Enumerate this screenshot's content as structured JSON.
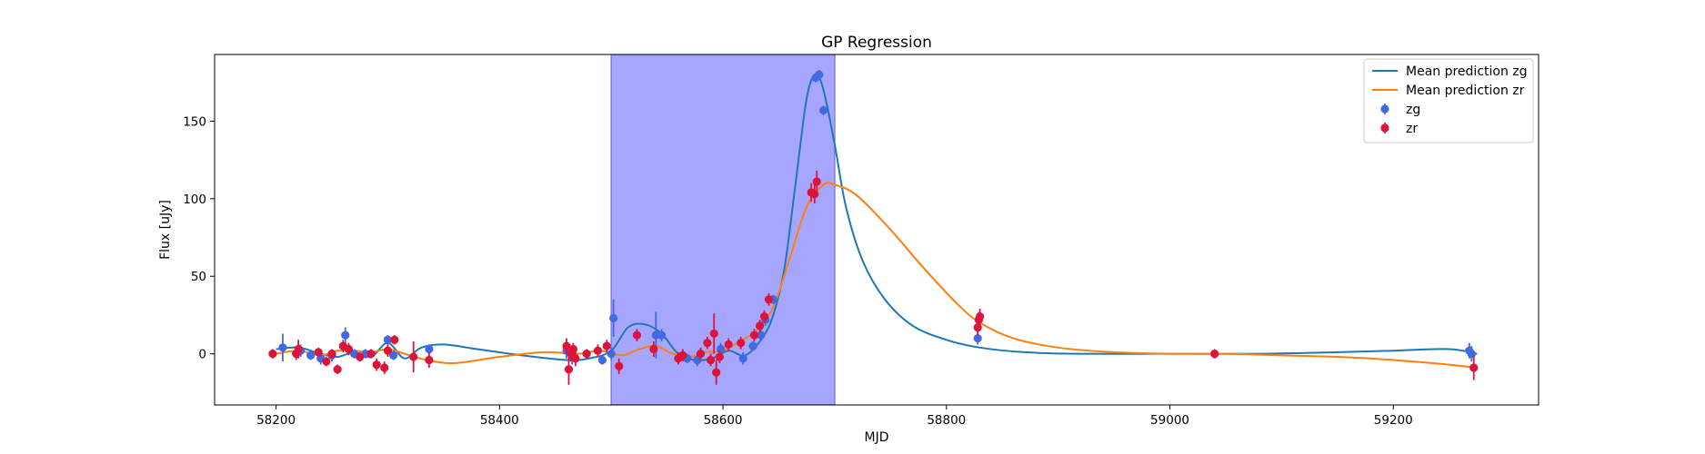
{
  "chart_data": {
    "type": "scatter",
    "title": "GP Regression",
    "xlabel": "MJD",
    "ylabel": "Flux [uJy]",
    "xlim": [
      58145,
      59330
    ],
    "ylim": [
      -33,
      193
    ],
    "xticks": [
      58200,
      58400,
      58600,
      58800,
      59000,
      59200
    ],
    "yticks": [
      0,
      50,
      100,
      150
    ],
    "grid": false,
    "legend_placement": "top-right",
    "shaded_region": {
      "x0": 58500,
      "x1": 58700,
      "color": "#a7a6ff",
      "edge": "#7b7bef"
    },
    "series": [
      {
        "name": "Mean prediction zg",
        "kind": "line",
        "color": "#1f77b4",
        "x": [
          58200,
          58220,
          58240,
          58255,
          58270,
          58285,
          58300,
          58315,
          58330,
          58350,
          58380,
          58420,
          58460,
          58480,
          58500,
          58515,
          58530,
          58545,
          58560,
          58575,
          58590,
          58605,
          58620,
          58635,
          58645,
          58655,
          58665,
          58675,
          58683,
          58690,
          58700,
          58710,
          58725,
          58745,
          58770,
          58800,
          58830,
          58870,
          58920,
          59000,
          59080,
          59150,
          59200,
          59250,
          59275
        ],
        "y": [
          3,
          4,
          0,
          -2,
          1,
          -2,
          7,
          -3,
          4,
          6,
          3,
          -1,
          -4,
          -3,
          2,
          17,
          19,
          13,
          0,
          -4,
          -3,
          2,
          -1,
          10,
          25,
          55,
          110,
          165,
          180,
          170,
          135,
          95,
          60,
          35,
          18,
          9,
          4,
          1,
          0,
          0,
          0,
          1,
          2,
          3,
          0
        ]
      },
      {
        "name": "Mean prediction zr",
        "kind": "line",
        "color": "#ff7f0e",
        "x": [
          58200,
          58220,
          58240,
          58255,
          58270,
          58285,
          58300,
          58315,
          58335,
          58360,
          58400,
          58440,
          58470,
          58490,
          58510,
          58525,
          58540,
          58555,
          58570,
          58585,
          58600,
          58615,
          58630,
          58645,
          58660,
          58675,
          58690,
          58700,
          58720,
          58750,
          58780,
          58810,
          58830,
          58860,
          58900,
          58950,
          59000,
          59050,
          59100,
          59150,
          59200,
          59250,
          59275
        ],
        "y": [
          0,
          2,
          -1,
          2,
          2,
          1,
          3,
          0,
          -4,
          -6,
          -2,
          1,
          0,
          2,
          -1,
          3,
          5,
          0,
          -2,
          1,
          2,
          8,
          15,
          30,
          62,
          95,
          109,
          109,
          102,
          80,
          55,
          32,
          20,
          10,
          4,
          1,
          0,
          0,
          -1,
          -2,
          -4,
          -7,
          -9
        ]
      },
      {
        "name": "zg",
        "kind": "scatter",
        "color": "#4169e1",
        "points": [
          [
            58206,
            4,
            9
          ],
          [
            58222,
            2,
            4
          ],
          [
            58231,
            -1,
            3
          ],
          [
            58240,
            -3,
            4
          ],
          [
            58250,
            -1,
            4
          ],
          [
            58262,
            12,
            5
          ],
          [
            58270,
            0,
            3
          ],
          [
            58280,
            0,
            3
          ],
          [
            58300,
            9,
            3
          ],
          [
            58305,
            -1,
            3
          ],
          [
            58337,
            3,
            3
          ],
          [
            58460,
            2,
            5
          ],
          [
            58465,
            -2,
            5
          ],
          [
            58492,
            -4,
            3
          ],
          [
            58500,
            0,
            4
          ],
          [
            58502,
            23,
            12
          ],
          [
            58540,
            12,
            15
          ],
          [
            58545,
            12,
            4
          ],
          [
            58568,
            -3,
            3
          ],
          [
            58577,
            -4,
            4
          ],
          [
            58598,
            3,
            4
          ],
          [
            58618,
            -3,
            4
          ],
          [
            58627,
            5,
            3
          ],
          [
            58634,
            12,
            4
          ],
          [
            58638,
            22,
            4
          ],
          [
            58645,
            35,
            3
          ],
          [
            58683,
            178,
            3
          ],
          [
            58686,
            180,
            3
          ],
          [
            58690,
            157,
            3
          ],
          [
            58828,
            10,
            4
          ],
          [
            59268,
            2,
            5
          ],
          [
            59270,
            0,
            5
          ]
        ]
      },
      {
        "name": "zr",
        "kind": "scatter",
        "color": "#dc143c",
        "points": [
          [
            58197,
            0,
            3
          ],
          [
            58218,
            0,
            4
          ],
          [
            58220,
            3,
            6
          ],
          [
            58238,
            1,
            3
          ],
          [
            58245,
            -5,
            3
          ],
          [
            58250,
            0,
            3
          ],
          [
            58255,
            -10,
            3
          ],
          [
            58260,
            5,
            4
          ],
          [
            58265,
            3,
            4
          ],
          [
            58275,
            -2,
            3
          ],
          [
            58285,
            0,
            3
          ],
          [
            58290,
            -7,
            4
          ],
          [
            58297,
            -9,
            4
          ],
          [
            58300,
            2,
            4
          ],
          [
            58306,
            9,
            3
          ],
          [
            58323,
            -2,
            10
          ],
          [
            58337,
            -4,
            5
          ],
          [
            58460,
            5,
            5
          ],
          [
            58462,
            -10,
            10
          ],
          [
            58464,
            0,
            5
          ],
          [
            58466,
            3,
            4
          ],
          [
            58468,
            -3,
            5
          ],
          [
            58478,
            0,
            3
          ],
          [
            58488,
            2,
            4
          ],
          [
            58496,
            5,
            4
          ],
          [
            58507,
            -8,
            5
          ],
          [
            58523,
            12,
            4
          ],
          [
            58538,
            3,
            5
          ],
          [
            58560,
            -3,
            4
          ],
          [
            58564,
            -1,
            4
          ],
          [
            58580,
            0,
            4
          ],
          [
            58586,
            7,
            4
          ],
          [
            58589,
            -4,
            4
          ],
          [
            58592,
            13,
            13
          ],
          [
            58594,
            -12,
            8
          ],
          [
            58597,
            -2,
            4
          ],
          [
            58605,
            6,
            4
          ],
          [
            58616,
            7,
            4
          ],
          [
            58628,
            12,
            4
          ],
          [
            58633,
            18,
            4
          ],
          [
            58637,
            24,
            4
          ],
          [
            58641,
            35,
            4
          ],
          [
            58679,
            104,
            6
          ],
          [
            58682,
            103,
            6
          ],
          [
            58684,
            111,
            7
          ],
          [
            58828,
            17,
            5
          ],
          [
            58829,
            22,
            5
          ],
          [
            58830,
            24,
            5
          ],
          [
            59040,
            0,
            3
          ],
          [
            59272,
            -9,
            8
          ]
        ]
      }
    ],
    "legend": [
      {
        "label": "Mean prediction zg",
        "kind": "line",
        "color": "#1f77b4"
      },
      {
        "label": "Mean prediction zr",
        "kind": "line",
        "color": "#ff7f0e"
      },
      {
        "label": "zg",
        "kind": "marker",
        "color": "#4169e1"
      },
      {
        "label": "zr",
        "kind": "marker",
        "color": "#dc143c"
      }
    ]
  }
}
